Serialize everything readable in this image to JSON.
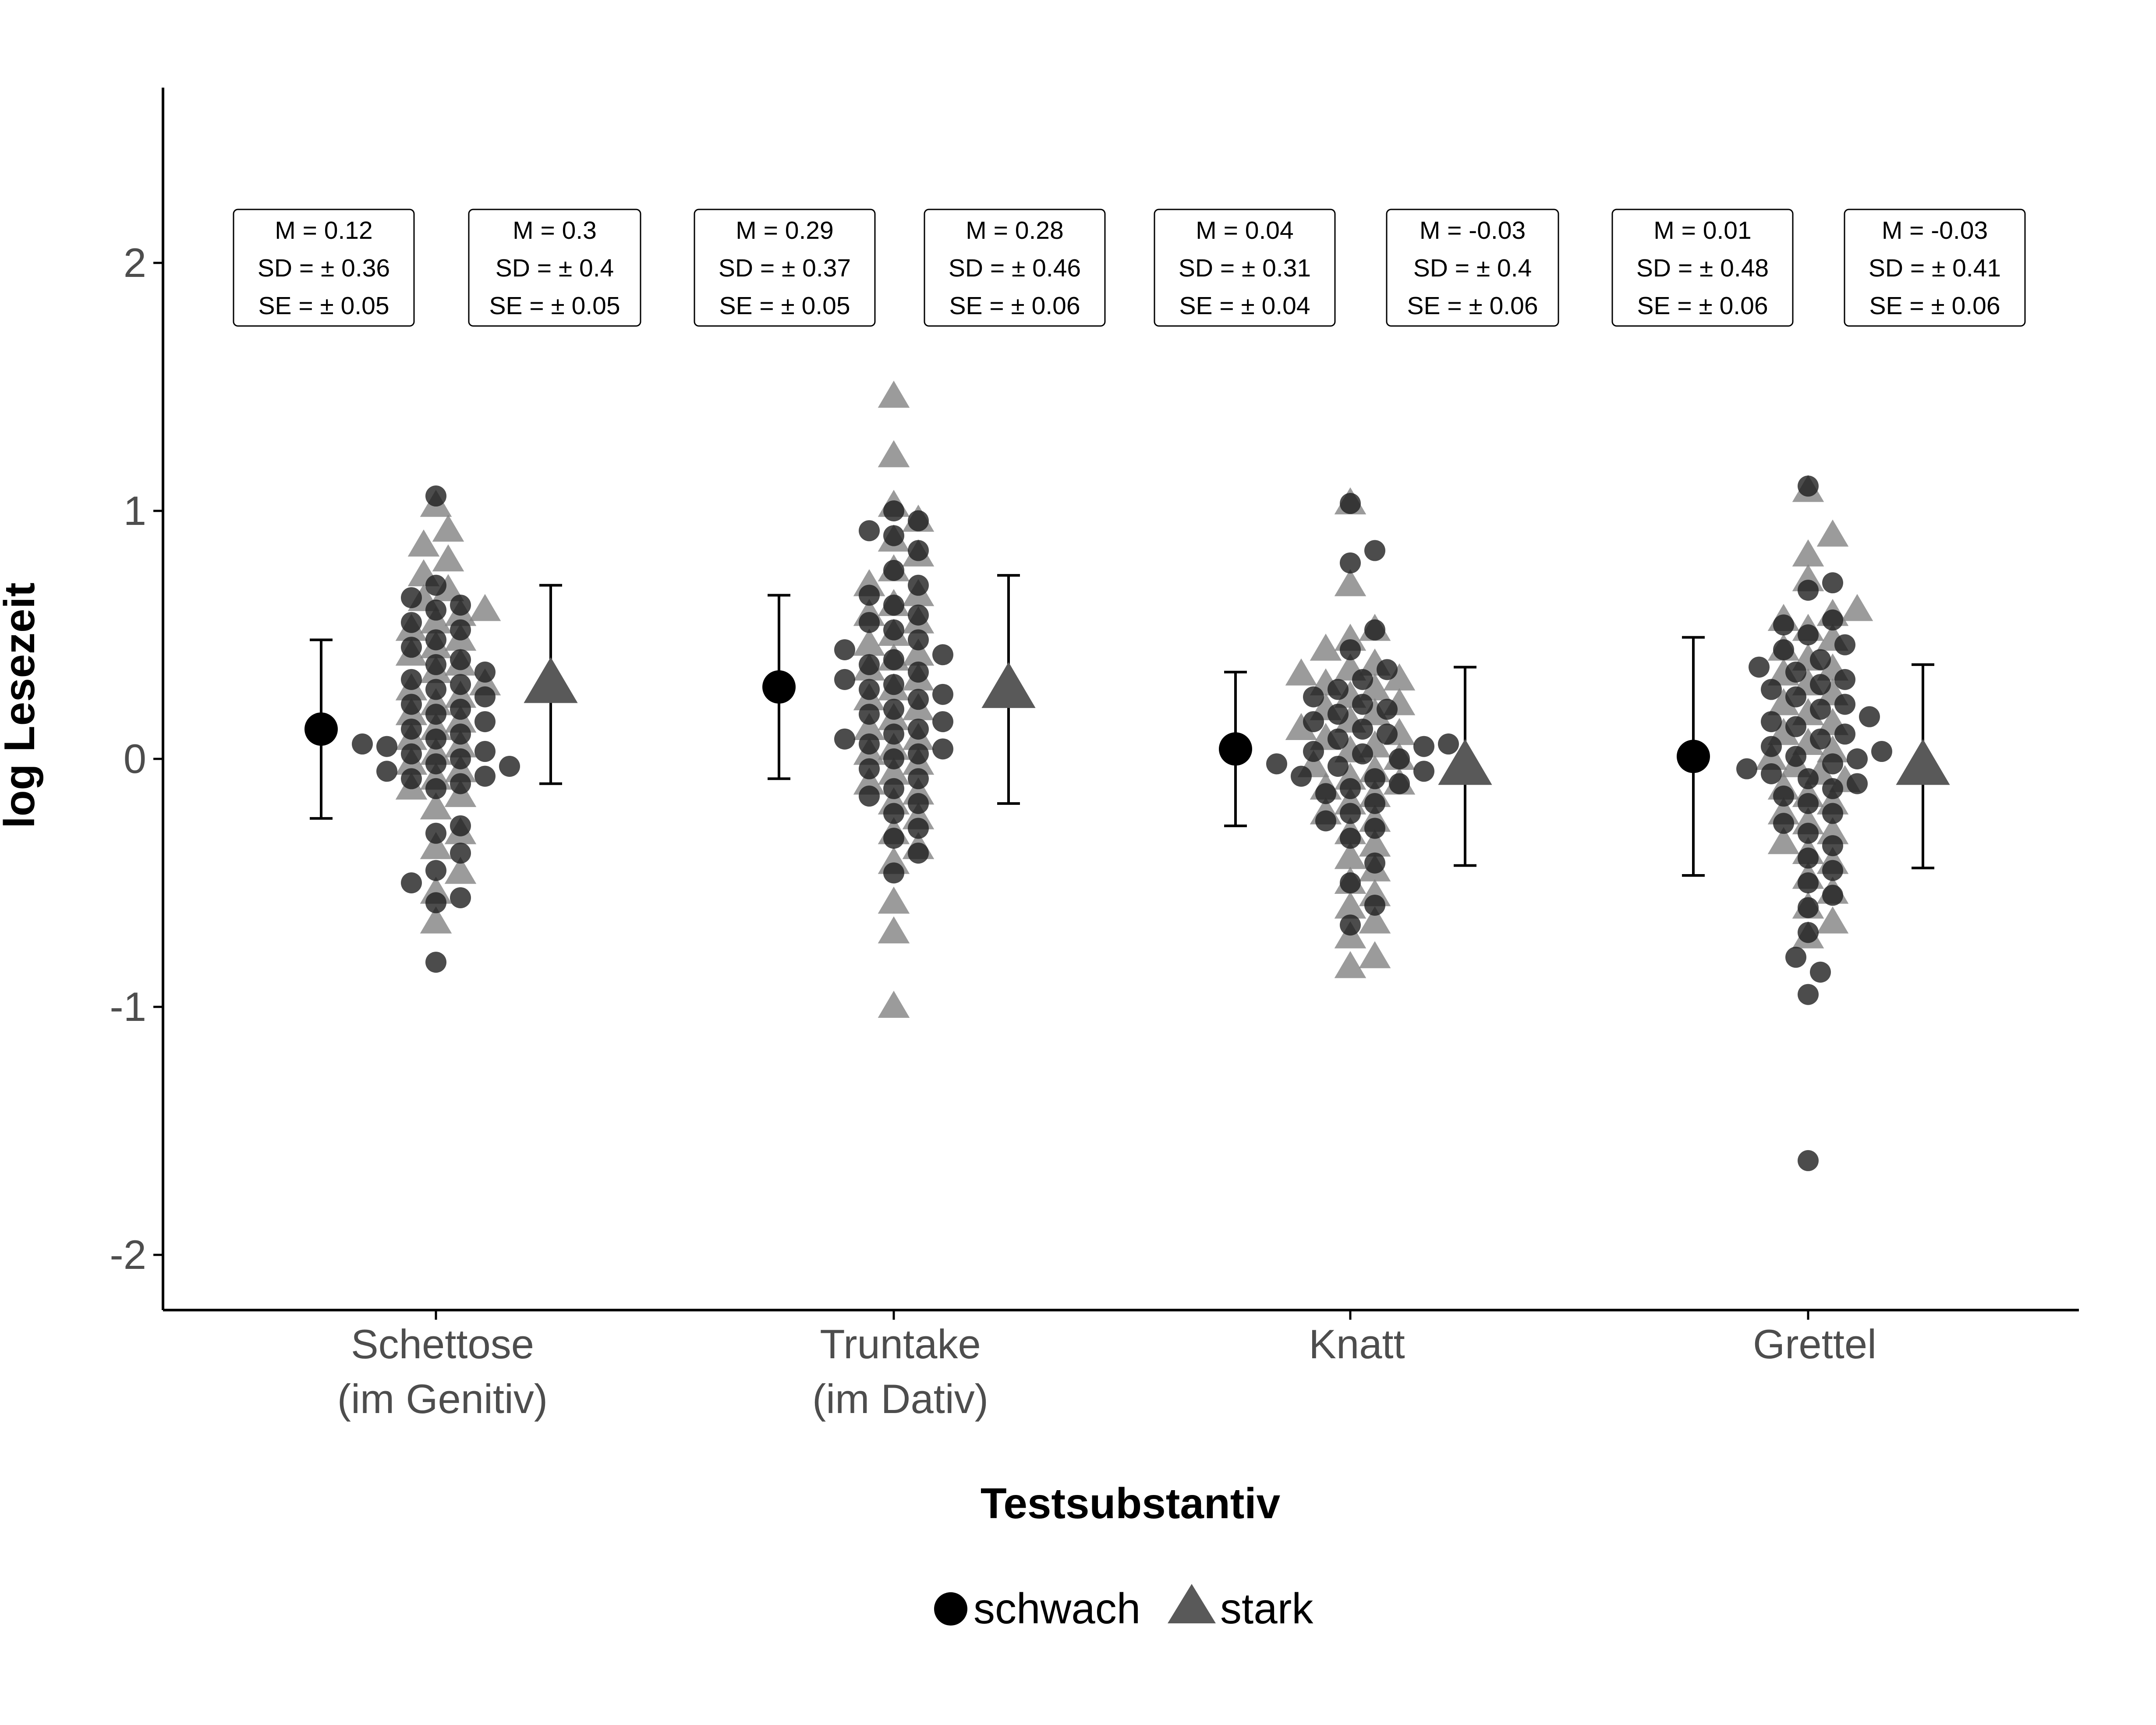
{
  "chart_data": {
    "type": "scatter",
    "title": "",
    "xlabel": "Testsubstantiv",
    "ylabel": "log Lesezeit",
    "ylim": [
      -2.2,
      2.7
    ],
    "yticks": [
      "-2",
      "-1",
      "0",
      "1",
      "2"
    ],
    "y_tick_values": [
      -2,
      -1,
      0,
      1,
      2
    ],
    "categories": [
      "Schettose|(im Genitiv)",
      "Truntake|(im Dativ)",
      "Knatt",
      "Grettel"
    ],
    "grid": false,
    "legend": {
      "position": "bottom",
      "items": [
        {
          "label": "schwach",
          "shape": "circle",
          "color": "#000000"
        },
        {
          "label": "stark",
          "shape": "triangle",
          "color": "#595959"
        }
      ]
    },
    "colors": {
      "schwach_points": "#1a1a1a",
      "stark_points": "#7f7f7f",
      "schwach_mean": "#000000",
      "stark_mean": "#595959"
    },
    "series": [
      {
        "name": "schwach",
        "summary": [
          {
            "category": "Schettose|(im Genitiv)",
            "mean": 0.12,
            "lower": -0.24,
            "upper": 0.48
          },
          {
            "category": "Truntake|(im Dativ)",
            "mean": 0.29,
            "lower": -0.08,
            "upper": 0.66
          },
          {
            "category": "Knatt",
            "mean": 0.04,
            "lower": -0.27,
            "upper": 0.35
          },
          {
            "category": "Grettel",
            "mean": 0.01,
            "lower": -0.47,
            "upper": 0.49
          }
        ],
        "points": [
          [
            1.06,
            0.7,
            0.65,
            0.62,
            0.6,
            0.55,
            0.52,
            0.48,
            0.45,
            0.4,
            0.38,
            0.35,
            0.32,
            0.3,
            0.28,
            0.25,
            0.22,
            0.2,
            0.18,
            0.15,
            0.12,
            0.1,
            0.08,
            0.06,
            0.05,
            0.03,
            0.02,
            0.0,
            -0.02,
            -0.03,
            -0.05,
            -0.07,
            -0.08,
            -0.1,
            -0.12,
            -0.27,
            -0.3,
            -0.38,
            -0.45,
            -0.5,
            -0.56,
            -0.58,
            -0.82
          ],
          [
            1.0,
            0.96,
            0.92,
            0.9,
            0.84,
            0.76,
            0.7,
            0.66,
            0.62,
            0.58,
            0.55,
            0.52,
            0.48,
            0.44,
            0.42,
            0.4,
            0.38,
            0.35,
            0.32,
            0.3,
            0.28,
            0.26,
            0.24,
            0.2,
            0.18,
            0.15,
            0.12,
            0.1,
            0.08,
            0.06,
            0.04,
            0.02,
            0.0,
            -0.04,
            -0.08,
            -0.12,
            -0.15,
            -0.18,
            -0.22,
            -0.28,
            -0.32,
            -0.38,
            -0.46
          ],
          [
            1.03,
            0.84,
            0.79,
            0.52,
            0.44,
            0.36,
            0.32,
            0.28,
            0.25,
            0.22,
            0.2,
            0.18,
            0.15,
            0.12,
            0.1,
            0.08,
            0.06,
            0.05,
            0.03,
            0.02,
            0.0,
            -0.02,
            -0.03,
            -0.05,
            -0.07,
            -0.08,
            -0.1,
            -0.12,
            -0.14,
            -0.18,
            -0.22,
            -0.25,
            -0.28,
            -0.32,
            -0.42,
            -0.5,
            -0.59,
            -0.67
          ],
          [
            1.1,
            0.71,
            0.68,
            0.56,
            0.54,
            0.5,
            0.46,
            0.44,
            0.4,
            0.37,
            0.35,
            0.32,
            0.3,
            0.28,
            0.25,
            0.22,
            0.2,
            0.17,
            0.15,
            0.13,
            0.1,
            0.08,
            0.05,
            0.03,
            0.01,
            0.0,
            -0.02,
            -0.04,
            -0.06,
            -0.08,
            -0.1,
            -0.12,
            -0.15,
            -0.18,
            -0.22,
            -0.26,
            -0.3,
            -0.35,
            -0.4,
            -0.45,
            -0.5,
            -0.55,
            -0.6,
            -0.7,
            -0.8,
            -0.86,
            -0.95,
            -1.62
          ]
        ]
      },
      {
        "name": "stark",
        "summary": [
          {
            "category": "Schettose|(im Genitiv)",
            "mean": 0.3,
            "lower": -0.1,
            "upper": 0.7
          },
          {
            "category": "Truntake|(im Dativ)",
            "mean": 0.28,
            "lower": -0.18,
            "upper": 0.74
          },
          {
            "category": "Knatt",
            "mean": -0.03,
            "lower": -0.43,
            "upper": 0.37
          },
          {
            "category": "Grettel",
            "mean": -0.03,
            "lower": -0.44,
            "upper": 0.38
          }
        ],
        "points": [
          [
            1.02,
            0.92,
            0.86,
            0.8,
            0.74,
            0.68,
            0.64,
            0.6,
            0.58,
            0.55,
            0.52,
            0.48,
            0.45,
            0.42,
            0.38,
            0.35,
            0.3,
            0.28,
            0.25,
            0.22,
            0.18,
            0.15,
            0.12,
            0.08,
            0.05,
            0.02,
            -0.02,
            -0.05,
            -0.08,
            -0.12,
            -0.15,
            -0.2,
            -0.3,
            -0.36,
            -0.46,
            -0.54,
            -0.66
          ],
          [
            1.46,
            1.22,
            1.02,
            0.96,
            0.88,
            0.82,
            0.76,
            0.7,
            0.66,
            0.62,
            0.58,
            0.55,
            0.5,
            0.46,
            0.42,
            0.4,
            0.36,
            0.32,
            0.28,
            0.24,
            0.2,
            0.16,
            0.12,
            0.08,
            0.04,
            0.02,
            -0.02,
            -0.06,
            -0.1,
            -0.14,
            -0.18,
            -0.24,
            -0.3,
            -0.36,
            -0.42,
            -0.58,
            -0.7,
            -1.0
          ],
          [
            1.03,
            0.7,
            0.52,
            0.48,
            0.44,
            0.38,
            0.36,
            0.34,
            0.32,
            0.3,
            0.28,
            0.25,
            0.22,
            0.2,
            0.18,
            0.15,
            0.12,
            0.1,
            0.08,
            0.05,
            0.03,
            0.0,
            -0.03,
            -0.05,
            -0.08,
            -0.1,
            -0.12,
            -0.15,
            -0.18,
            -0.22,
            -0.25,
            -0.3,
            -0.35,
            -0.4,
            -0.45,
            -0.5,
            -0.55,
            -0.6,
            -0.66,
            -0.72,
            -0.8,
            -0.84
          ],
          [
            1.08,
            0.9,
            0.82,
            0.72,
            0.6,
            0.58,
            0.56,
            0.52,
            0.48,
            0.44,
            0.4,
            0.36,
            0.34,
            0.3,
            0.26,
            0.22,
            0.18,
            0.14,
            0.1,
            0.06,
            0.03,
            0.0,
            -0.03,
            -0.06,
            -0.09,
            -0.12,
            -0.15,
            -0.18,
            -0.22,
            -0.26,
            -0.3,
            -0.34,
            -0.38,
            -0.42,
            -0.48,
            -0.54,
            -0.6,
            -0.66,
            -0.72
          ]
        ]
      }
    ],
    "stat_boxes": [
      {
        "category": "Schettose|(im Genitiv)",
        "group": "schwach",
        "lines": [
          "M = 0.12",
          "SD = ±  0.36",
          "SE = ±  0.05"
        ]
      },
      {
        "category": "Schettose|(im Genitiv)",
        "group": "stark",
        "lines": [
          "M = 0.3",
          "SD = ±  0.4",
          "SE = ±  0.05"
        ]
      },
      {
        "category": "Truntake|(im Dativ)",
        "group": "schwach",
        "lines": [
          "M = 0.29",
          "SD = ±  0.37",
          "SE = ±  0.05"
        ]
      },
      {
        "category": "Truntake|(im Dativ)",
        "group": "stark",
        "lines": [
          "M = 0.28",
          "SD = ±  0.46",
          "SE = ±  0.06"
        ]
      },
      {
        "category": "Knatt",
        "group": "schwach",
        "lines": [
          "M = 0.04",
          "SD = ±  0.31",
          "SE = ±  0.04"
        ]
      },
      {
        "category": "Knatt",
        "group": "stark",
        "lines": [
          "M = -0.03",
          "SD = ±  0.4",
          "SE = ±  0.06"
        ]
      },
      {
        "category": "Grettel",
        "group": "schwach",
        "lines": [
          "M = 0.01",
          "SD = ±  0.48",
          "SE = ±  0.06"
        ]
      },
      {
        "category": "Grettel",
        "group": "stark",
        "lines": [
          "M = -0.03",
          "SD = ±  0.41",
          "SE = ±  0.06"
        ]
      }
    ]
  }
}
